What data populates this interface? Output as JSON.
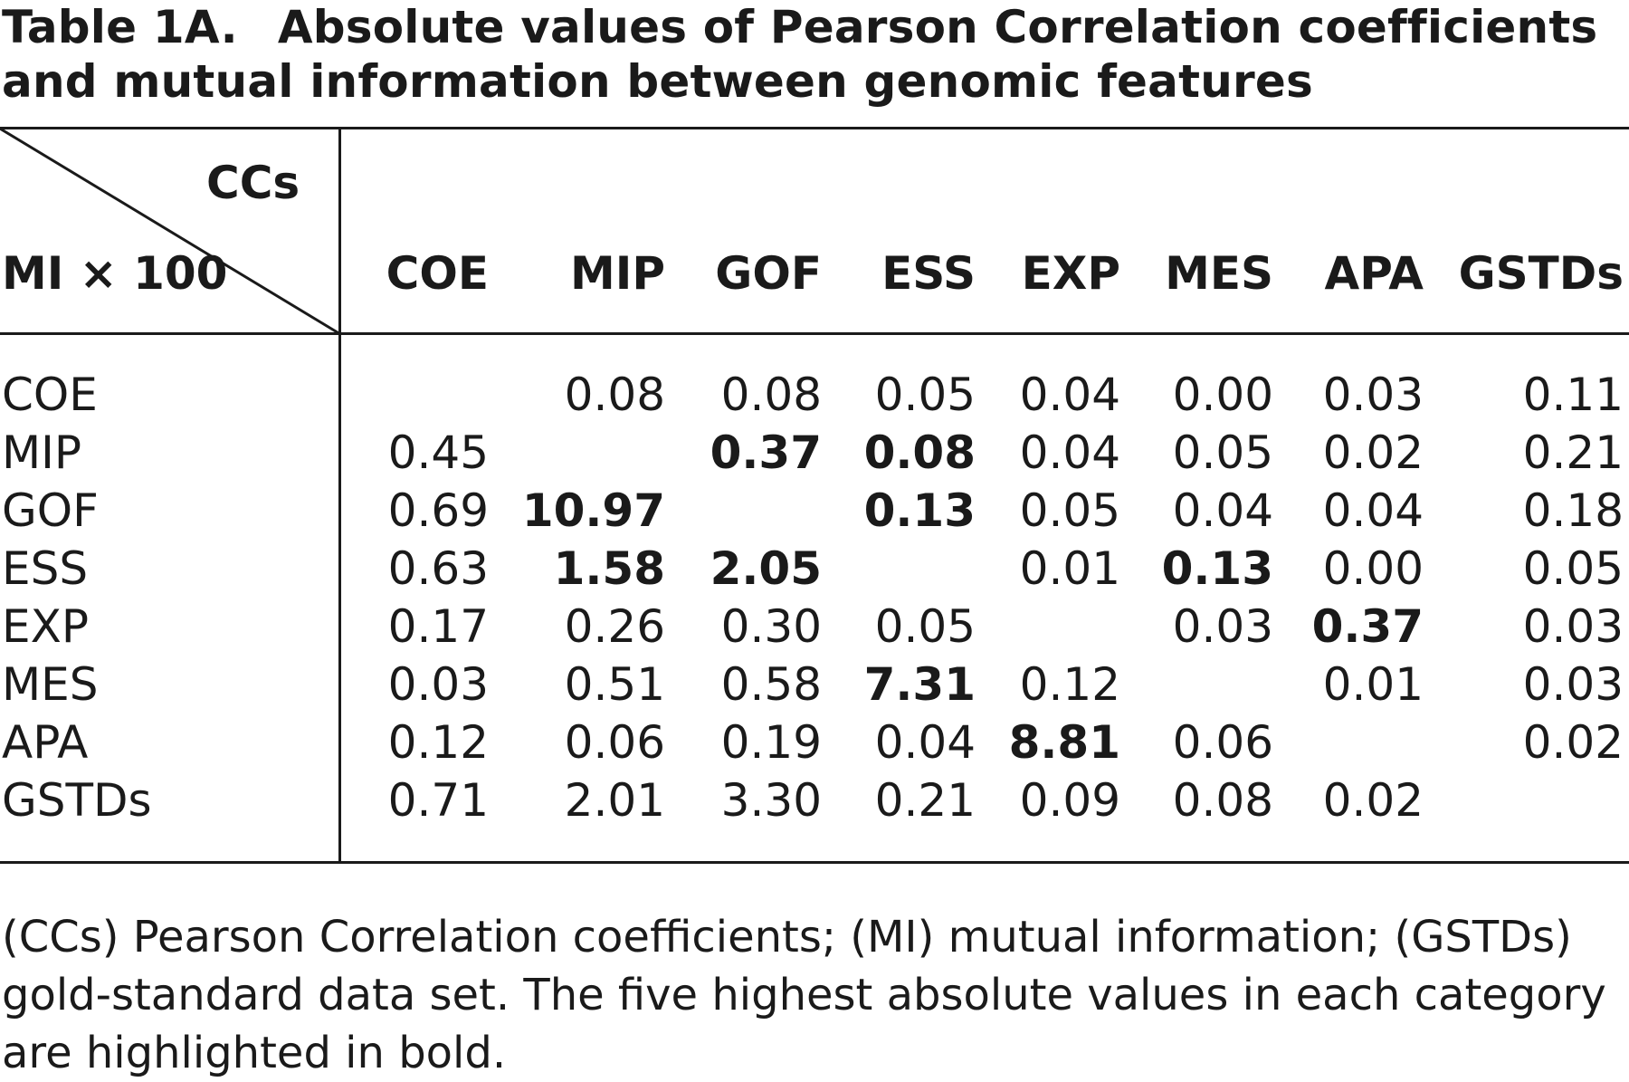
{
  "title": {
    "label": "Table 1A.",
    "text": "Absolute values of Pearson Correlation coefficients and mutual information between genomic features"
  },
  "stub": {
    "top": "CCs",
    "bottom": "MI × 100"
  },
  "columns": [
    "COE",
    "MIP",
    "GOF",
    "ESS",
    "EXP",
    "MES",
    "APA",
    "GSTDs"
  ],
  "rows": [
    {
      "label": "COE",
      "cells": [
        {
          "v": "",
          "b": false
        },
        {
          "v": "0.08",
          "b": false
        },
        {
          "v": "0.08",
          "b": false
        },
        {
          "v": "0.05",
          "b": false
        },
        {
          "v": "0.04",
          "b": false
        },
        {
          "v": "0.00",
          "b": false
        },
        {
          "v": "0.03",
          "b": false
        },
        {
          "v": "0.11",
          "b": false
        }
      ]
    },
    {
      "label": "MIP",
      "cells": [
        {
          "v": "0.45",
          "b": false
        },
        {
          "v": "",
          "b": false
        },
        {
          "v": "0.37",
          "b": true
        },
        {
          "v": "0.08",
          "b": true
        },
        {
          "v": "0.04",
          "b": false
        },
        {
          "v": "0.05",
          "b": false
        },
        {
          "v": "0.02",
          "b": false
        },
        {
          "v": "0.21",
          "b": false
        }
      ]
    },
    {
      "label": "GOF",
      "cells": [
        {
          "v": "0.69",
          "b": false
        },
        {
          "v": "10.97",
          "b": true
        },
        {
          "v": "",
          "b": false
        },
        {
          "v": "0.13",
          "b": true
        },
        {
          "v": "0.05",
          "b": false
        },
        {
          "v": "0.04",
          "b": false
        },
        {
          "v": "0.04",
          "b": false
        },
        {
          "v": "0.18",
          "b": false
        }
      ]
    },
    {
      "label": "ESS",
      "cells": [
        {
          "v": "0.63",
          "b": false
        },
        {
          "v": "1.58",
          "b": true
        },
        {
          "v": "2.05",
          "b": true
        },
        {
          "v": "",
          "b": false
        },
        {
          "v": "0.01",
          "b": false
        },
        {
          "v": "0.13",
          "b": true
        },
        {
          "v": "0.00",
          "b": false
        },
        {
          "v": "0.05",
          "b": false
        }
      ]
    },
    {
      "label": "EXP",
      "cells": [
        {
          "v": "0.17",
          "b": false
        },
        {
          "v": "0.26",
          "b": false
        },
        {
          "v": "0.30",
          "b": false
        },
        {
          "v": "0.05",
          "b": false
        },
        {
          "v": "",
          "b": false
        },
        {
          "v": "0.03",
          "b": false
        },
        {
          "v": "0.37",
          "b": true
        },
        {
          "v": "0.03",
          "b": false
        }
      ]
    },
    {
      "label": "MES",
      "cells": [
        {
          "v": "0.03",
          "b": false
        },
        {
          "v": "0.51",
          "b": false
        },
        {
          "v": "0.58",
          "b": false
        },
        {
          "v": "7.31",
          "b": true
        },
        {
          "v": "0.12",
          "b": false
        },
        {
          "v": "",
          "b": false
        },
        {
          "v": "0.01",
          "b": false
        },
        {
          "v": "0.03",
          "b": false
        }
      ]
    },
    {
      "label": "APA",
      "cells": [
        {
          "v": "0.12",
          "b": false
        },
        {
          "v": "0.06",
          "b": false
        },
        {
          "v": "0.19",
          "b": false
        },
        {
          "v": "0.04",
          "b": false
        },
        {
          "v": "8.81",
          "b": true
        },
        {
          "v": "0.06",
          "b": false
        },
        {
          "v": "",
          "b": false
        },
        {
          "v": "0.02",
          "b": false
        }
      ]
    },
    {
      "label": "GSTDs",
      "cells": [
        {
          "v": "0.71",
          "b": false
        },
        {
          "v": "2.01",
          "b": false
        },
        {
          "v": "3.30",
          "b": false
        },
        {
          "v": "0.21",
          "b": false
        },
        {
          "v": "0.09",
          "b": false
        },
        {
          "v": "0.08",
          "b": false
        },
        {
          "v": "0.02",
          "b": false
        },
        {
          "v": "",
          "b": false
        }
      ]
    }
  ],
  "footnote": "(CCs) Pearson Correlation coefficients; (MI) mutual information; (GSTDs) gold-standard data set. The five highest absolute values in each category are highlighted in bold."
}
